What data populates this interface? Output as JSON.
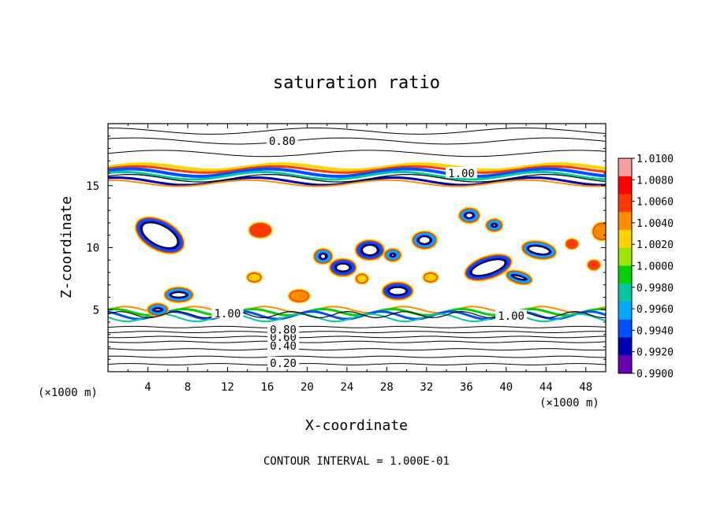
{
  "chart_data": {
    "type": "heatmap",
    "title": "saturation ratio",
    "xlabel": "X-coordinate",
    "ylabel": "Z-coordinate",
    "x_unit_left": "(×1000 m)",
    "x_unit_right": "(×1000 m)",
    "footer": "CONTOUR INTERVAL = 1.000E-01",
    "xlim": [
      0,
      50
    ],
    "ylim": [
      0,
      20
    ],
    "x_ticks": [
      4,
      8,
      12,
      16,
      20,
      24,
      28,
      32,
      36,
      40,
      44,
      48
    ],
    "y_ticks": [
      5,
      10,
      15
    ],
    "contour_interval": 0.1,
    "contour_levels": [
      {
        "label": "0.20",
        "x": 17.6,
        "y": 0.7
      },
      {
        "label": "0.40",
        "x": 17.6,
        "y": 2.1
      },
      {
        "label": "0.60",
        "x": 17.6,
        "y": 2.8
      },
      {
        "label": "0.80",
        "x": 17.6,
        "y": 3.4
      },
      {
        "label": "0.80",
        "x": 17.5,
        "y": 18.6
      },
      {
        "label": "1.00",
        "x": 12.0,
        "y": 4.7
      },
      {
        "label": "1.00",
        "x": 35.5,
        "y": 16.0
      },
      {
        "label": "1.00",
        "x": 40.5,
        "y": 4.5
      }
    ],
    "isolines_low": [
      0.6,
      1.2,
      1.8,
      2.4,
      2.8,
      3.2,
      3.6
    ],
    "isolines_high": [
      17.6,
      18.6,
      19.4
    ],
    "colorbar": {
      "min": 0.99,
      "max": 1.01,
      "labels": [
        "1.0100",
        "1.0080",
        "1.0060",
        "1.0040",
        "1.0020",
        "1.0000",
        "0.9980",
        "0.9960",
        "0.9940",
        "0.9920",
        "0.9900"
      ],
      "colors": [
        "#f4a0a0",
        "#ff0000",
        "#ff3a00",
        "#ff8c00",
        "#ffd200",
        "#9ae600",
        "#00d200",
        "#00c8a0",
        "#00a8ff",
        "#0050ff",
        "#0000b4",
        "#6a00b4"
      ]
    },
    "blobs": [
      {
        "x": 5.2,
        "y": 11.0,
        "rx": 2.5,
        "ry": 1.1,
        "rot": 28,
        "core": 0.994
      },
      {
        "x": 7.1,
        "y": 6.2,
        "rx": 1.3,
        "ry": 0.5,
        "rot": 0,
        "core": 0.996
      },
      {
        "x": 5.0,
        "y": 5.0,
        "rx": 0.9,
        "ry": 0.4,
        "rot": 0,
        "core": 0.996
      },
      {
        "x": 14.7,
        "y": 7.6,
        "rx": 0.6,
        "ry": 0.3,
        "rot": 0,
        "core": 1.002
      },
      {
        "x": 15.3,
        "y": 11.4,
        "rx": 1.0,
        "ry": 0.5,
        "rot": 0,
        "core": 1.006
      },
      {
        "x": 21.6,
        "y": 9.3,
        "rx": 0.8,
        "ry": 0.5,
        "rot": 0,
        "core": 0.996
      },
      {
        "x": 23.6,
        "y": 8.4,
        "rx": 1.2,
        "ry": 0.6,
        "rot": 0,
        "core": 0.994
      },
      {
        "x": 26.3,
        "y": 9.8,
        "rx": 1.3,
        "ry": 0.7,
        "rot": 0,
        "core": 0.994
      },
      {
        "x": 28.6,
        "y": 9.4,
        "rx": 0.7,
        "ry": 0.4,
        "rot": 0,
        "core": 0.996
      },
      {
        "x": 25.5,
        "y": 7.5,
        "rx": 0.5,
        "ry": 0.3,
        "rot": 0,
        "core": 1.002
      },
      {
        "x": 29.1,
        "y": 6.5,
        "rx": 1.4,
        "ry": 0.6,
        "rot": 0,
        "core": 0.994
      },
      {
        "x": 31.8,
        "y": 10.6,
        "rx": 1.1,
        "ry": 0.6,
        "rot": 0,
        "core": 0.996
      },
      {
        "x": 32.4,
        "y": 7.6,
        "rx": 0.6,
        "ry": 0.3,
        "rot": 0,
        "core": 1.002
      },
      {
        "x": 36.3,
        "y": 12.6,
        "rx": 0.9,
        "ry": 0.5,
        "rot": 0,
        "core": 0.996
      },
      {
        "x": 38.8,
        "y": 11.8,
        "rx": 0.7,
        "ry": 0.4,
        "rot": 0,
        "core": 0.996
      },
      {
        "x": 38.2,
        "y": 8.4,
        "rx": 2.3,
        "ry": 0.8,
        "rot": -18,
        "core": 0.994
      },
      {
        "x": 41.3,
        "y": 7.6,
        "rx": 1.2,
        "ry": 0.4,
        "rot": 15,
        "core": 0.996
      },
      {
        "x": 43.3,
        "y": 9.8,
        "rx": 1.6,
        "ry": 0.6,
        "rot": 10,
        "core": 0.996
      },
      {
        "x": 46.6,
        "y": 10.3,
        "rx": 0.5,
        "ry": 0.3,
        "rot": 0,
        "core": 1.006
      },
      {
        "x": 49.6,
        "y": 11.3,
        "rx": 0.8,
        "ry": 0.6,
        "rot": 0,
        "core": 1.004
      },
      {
        "x": 48.8,
        "y": 8.6,
        "rx": 0.5,
        "ry": 0.3,
        "rot": 0,
        "core": 1.006
      },
      {
        "x": 19.2,
        "y": 6.1,
        "rx": 0.9,
        "ry": 0.4,
        "rot": 0,
        "core": 1.004
      }
    ]
  }
}
